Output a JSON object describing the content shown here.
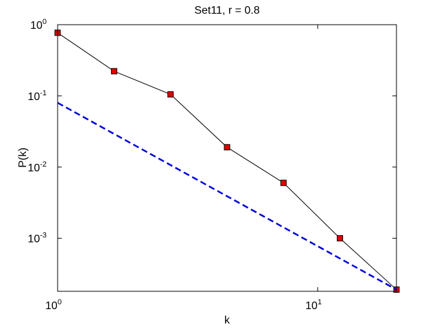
{
  "chart_data": {
    "type": "line",
    "title": "Set11, r = 0.8",
    "x_label": "k",
    "y_label": "P(k)",
    "log_x": true,
    "log_y": true,
    "xlim": [
      1,
      20.09
    ],
    "ylim": [
      0.00018,
      1
    ],
    "xticks": [
      {
        "value": 1,
        "label": "10",
        "exponent": "0"
      },
      {
        "value": 10,
        "label": "10",
        "exponent": "1"
      }
    ],
    "yticks": [
      {
        "value": 0.001,
        "label": "10",
        "exponent": "-3"
      },
      {
        "value": 0.01,
        "label": "10",
        "exponent": "-2"
      },
      {
        "value": 0.1,
        "label": "10",
        "exponent": "-1"
      },
      {
        "value": 1,
        "label": "10",
        "exponent": "0"
      }
    ],
    "series": [
      {
        "color": "#000000",
        "marker_color": "#e00000",
        "dashed": false,
        "markers": true,
        "x": [
          1,
          1.649,
          2.718,
          4.482,
          7.389,
          12.18,
          20.09
        ],
        "values": [
          0.77,
          0.222,
          0.105,
          0.019,
          0.006,
          0.001,
          0.00019
        ]
      },
      {
        "color": "#0000dd",
        "dashed": true,
        "markers": false,
        "x": [
          1,
          20.09
        ],
        "values": [
          0.08,
          0.00019
        ]
      }
    ]
  }
}
